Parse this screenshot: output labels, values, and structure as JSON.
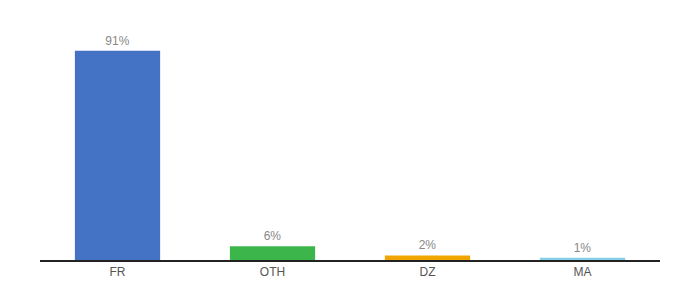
{
  "chart_data": {
    "type": "bar",
    "categories": [
      "FR",
      "OTH",
      "DZ",
      "MA"
    ],
    "values": [
      91,
      6,
      2,
      1
    ],
    "value_labels": [
      "91%",
      "6%",
      "2%",
      "1%"
    ],
    "colors": [
      "#4472c4",
      "#3cb54a",
      "#f0a500",
      "#87ceeb"
    ],
    "ylim": [
      0,
      100
    ],
    "grid": false,
    "data_labels": true,
    "tick_labels": "x"
  }
}
